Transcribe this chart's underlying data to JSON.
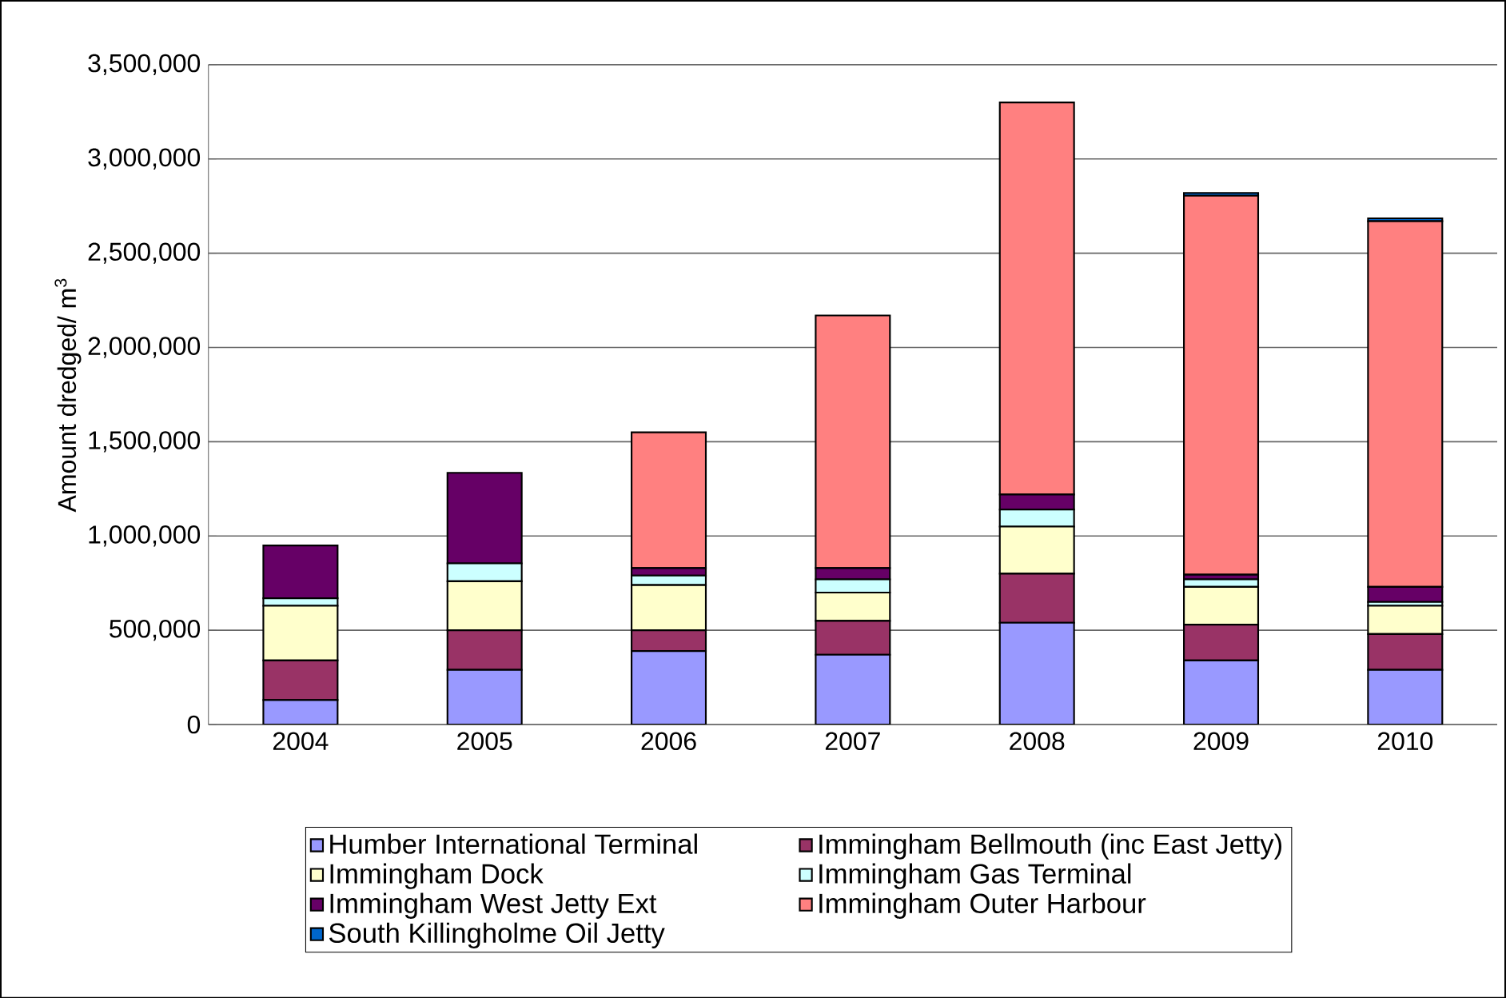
{
  "chart_data": {
    "type": "bar",
    "stacked": true,
    "ylabel": "Amount dredged/ m$^{3}$",
    "categories": [
      "2004",
      "2005",
      "2006",
      "2007",
      "2008",
      "2009",
      "2010"
    ],
    "series": [
      {
        "name": "Humber International Terminal",
        "color": "#9999ff",
        "values": [
          130000,
          290000,
          390000,
          370000,
          540000,
          340000,
          290000
        ]
      },
      {
        "name": "Immingham Bellmouth (inc East Jetty)",
        "color": "#993366",
        "values": [
          210000,
          210000,
          110000,
          180000,
          260000,
          190000,
          190000
        ]
      },
      {
        "name": "Immingham Dock",
        "color": "#ffffcc",
        "values": [
          290000,
          260000,
          240000,
          150000,
          250000,
          200000,
          150000
        ]
      },
      {
        "name": "Immingham Gas Terminal",
        "color": "#ccffff",
        "values": [
          40000,
          95000,
          50000,
          70000,
          90000,
          40000,
          20000
        ]
      },
      {
        "name": "Immingham West Jetty Ext",
        "color": "#660066",
        "values": [
          280000,
          480000,
          40000,
          60000,
          80000,
          25000,
          80000
        ]
      },
      {
        "name": "Immingham Outer Harbour",
        "color": "#ff8080",
        "values": [
          0,
          0,
          720000,
          1340000,
          2080000,
          2010000,
          1940000
        ]
      },
      {
        "name": "South Killingholme Oil Jetty",
        "color": "#0066cc",
        "values": [
          0,
          0,
          0,
          0,
          0,
          15000,
          15000
        ]
      }
    ],
    "ylim": [
      0,
      3500000
    ],
    "yticks": [
      {
        "value": 0,
        "label": "0"
      },
      {
        "value": 500000,
        "label": "500,000"
      },
      {
        "value": 1000000,
        "label": "1,000,000"
      },
      {
        "value": 1500000,
        "label": "1,500,000"
      },
      {
        "value": 2000000,
        "label": "2,000,000"
      },
      {
        "value": 2500000,
        "label": "2,500,000"
      },
      {
        "value": 3000000,
        "label": "3,000,000"
      },
      {
        "value": 3500000,
        "label": "3,500,000"
      }
    ],
    "grid": "y",
    "legend": "bottom"
  }
}
